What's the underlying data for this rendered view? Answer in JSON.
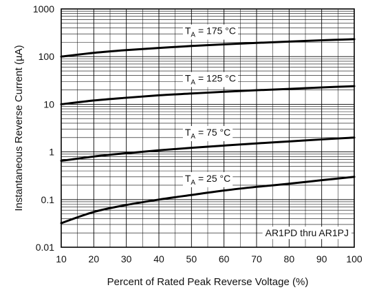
{
  "chart_data": {
    "type": "line",
    "title": "",
    "xlabel": "Percent of Rated Peak Reverse Voltage (%)",
    "ylabel": "Instantaneous Reverse Current (µA)",
    "xlim": [
      10,
      100
    ],
    "ylim": [
      0.01,
      1000
    ],
    "yscale": "log",
    "grid": true,
    "x_ticks": [
      "10",
      "20",
      "30",
      "40",
      "50",
      "60",
      "70",
      "80",
      "90",
      "100"
    ],
    "y_ticks": [
      "0.01",
      "0.1",
      "1",
      "10",
      "100",
      "1000"
    ],
    "note": "AR1PD thru AR1PJ",
    "series": [
      {
        "name": "TA = 175 °C",
        "label_main": "T",
        "label_sub": "A",
        "label_rest": " = 175 °C",
        "x": [
          10,
          20,
          30,
          40,
          50,
          60,
          70,
          80,
          90,
          100
        ],
        "y": [
          100,
          120,
          137,
          152,
          167,
          181,
          194,
          207,
          220,
          232
        ]
      },
      {
        "name": "TA = 125 °C",
        "label_main": "T",
        "label_sub": "A",
        "label_rest": " = 125 °C",
        "x": [
          10,
          20,
          30,
          40,
          50,
          60,
          70,
          80,
          90,
          100
        ],
        "y": [
          10,
          12,
          13.7,
          15.4,
          16.8,
          18.3,
          19.7,
          21,
          22.5,
          24
        ]
      },
      {
        "name": "TA = 75 °C",
        "label_main": "T",
        "label_sub": "A",
        "label_rest": " = 75 °C",
        "x": [
          10,
          20,
          30,
          40,
          50,
          60,
          70,
          80,
          90,
          100
        ],
        "y": [
          0.65,
          0.8,
          0.94,
          1.08,
          1.22,
          1.36,
          1.51,
          1.66,
          1.83,
          2.0
        ]
      },
      {
        "name": "TA = 25 °C",
        "label_main": "T",
        "label_sub": "A",
        "label_rest": " = 25 °C",
        "x": [
          10,
          20,
          30,
          40,
          50,
          60,
          70,
          80,
          90,
          100
        ],
        "y": [
          0.032,
          0.055,
          0.077,
          0.1,
          0.125,
          0.155,
          0.185,
          0.215,
          0.255,
          0.3
        ]
      }
    ]
  }
}
